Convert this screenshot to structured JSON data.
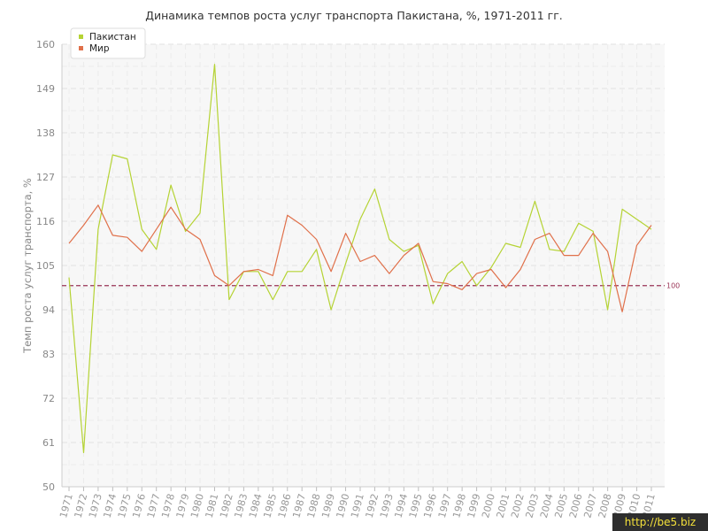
{
  "watermark": "http://be5.biz",
  "colors": {
    "pakistan": "#b5d334",
    "world": "#e0704a",
    "reference": "#993355"
  },
  "chart_data": {
    "type": "line",
    "title": "Динамика темпов роста услуг транспорта Пакистана, %, 1971-2011 гг.",
    "xlabel": "",
    "ylabel": "Темп роста услуг транспорта, %",
    "ylim": [
      50,
      160
    ],
    "yticks": [
      50,
      61,
      72,
      83,
      94,
      105,
      116,
      127,
      138,
      149,
      160
    ],
    "grid": true,
    "legend_position": "top-left",
    "x": [
      "1971",
      "1972",
      "1973",
      "1974",
      "1975",
      "1976",
      "1977",
      "1978",
      "1979",
      "1980",
      "1981",
      "1982",
      "1983",
      "1984",
      "1985",
      "1986",
      "1987",
      "1988",
      "1989",
      "1990",
      "1991",
      "1992",
      "1993",
      "1994",
      "1995",
      "1996",
      "1997",
      "1998",
      "1999",
      "2000",
      "2001",
      "2002",
      "2003",
      "2004",
      "2005",
      "2006",
      "2007",
      "2008",
      "2009",
      "2010",
      "2011"
    ],
    "series": [
      {
        "name": "Пакистан",
        "values": [
          102,
          58.5,
          114,
          132.5,
          131.5,
          114,
          109,
          125,
          113.5,
          118,
          155,
          96.5,
          103.5,
          103.5,
          96.5,
          103.5,
          103.5,
          109,
          94,
          105.5,
          116.5,
          124,
          111.5,
          108.5,
          110,
          95.5,
          103,
          106,
          100,
          104.5,
          110.5,
          109.5,
          121,
          109,
          108.5,
          115.5,
          113.5,
          94,
          119,
          116.5,
          114
        ]
      },
      {
        "name": "Мир",
        "values": [
          110.5,
          115,
          120,
          112.5,
          112,
          108.5,
          114,
          119.5,
          114,
          111.5,
          102.5,
          100,
          103.5,
          104,
          102.5,
          117.5,
          115,
          111.5,
          103.5,
          113,
          106,
          107.5,
          103,
          107.5,
          110.5,
          101,
          100.5,
          99,
          103,
          104,
          99.5,
          104,
          111.5,
          113,
          107.5,
          107.5,
          113,
          108.5,
          93.5,
          110,
          115
        ]
      }
    ],
    "reference_line": {
      "value": 100,
      "label": "100"
    }
  }
}
